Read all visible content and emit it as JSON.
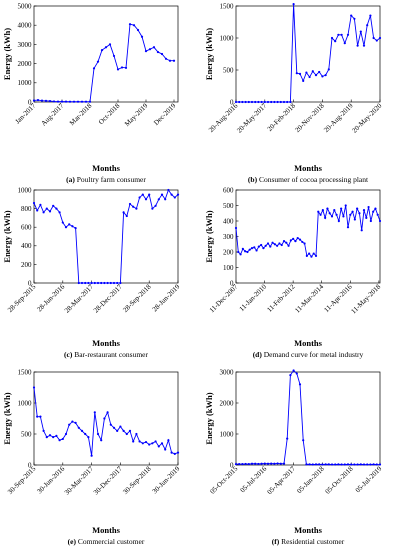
{
  "chart_data": [
    {
      "type": "line",
      "caption_letter": "(a)",
      "caption_text": "Poultry farm consumer",
      "xlabel": "Months",
      "ylabel": "Energy (kWh)",
      "ylim": [
        0,
        5000
      ],
      "yticks": [
        0,
        1000,
        2000,
        3000,
        4000,
        5000
      ],
      "xlim": [
        0,
        36
      ],
      "xticks": [
        {
          "x": 0,
          "label": "Jan-2017"
        },
        {
          "x": 7,
          "label": "Aug-2017"
        },
        {
          "x": 14,
          "label": "Mar-2018"
        },
        {
          "x": 21,
          "label": "Oct-2018"
        },
        {
          "x": 28,
          "label": "May-2019"
        },
        {
          "x": 35,
          "label": "Dec-2019"
        }
      ],
      "color": "#0000ff",
      "series": [
        {
          "x": [
            0,
            1,
            2,
            3,
            4,
            5,
            6,
            7,
            8,
            9,
            10,
            11,
            12,
            13,
            14,
            15,
            16,
            17,
            18,
            19,
            20,
            21,
            22,
            23,
            24,
            25,
            26,
            27,
            28,
            29,
            30,
            31,
            32,
            33,
            34,
            35
          ],
          "y": [
            80,
            100,
            70,
            60,
            50,
            30,
            20,
            20,
            20,
            15,
            15,
            15,
            15,
            15,
            15,
            1750,
            2100,
            2700,
            2850,
            3000,
            2400,
            1700,
            1800,
            1780,
            4050,
            4000,
            3750,
            3400,
            2650,
            2750,
            2850,
            2600,
            2500,
            2250,
            2150,
            2150
          ]
        }
      ]
    },
    {
      "type": "line",
      "caption_letter": "(b)",
      "caption_text": "Consumer of cocoa processing plant",
      "xlabel": "Months",
      "ylabel": "Energy (kWh)",
      "ylim": [
        0,
        1500
      ],
      "yticks": [
        0,
        500,
        1000,
        1500
      ],
      "xlim": [
        0,
        45
      ],
      "xticks": [
        {
          "x": 0,
          "label": "20-Aug-2016"
        },
        {
          "x": 9,
          "label": "20-May-2017"
        },
        {
          "x": 18,
          "label": "20-Feb-2018"
        },
        {
          "x": 27,
          "label": "20-Nov-2018"
        },
        {
          "x": 36,
          "label": "20-Aug-2019"
        },
        {
          "x": 45,
          "label": "20-May-2020"
        }
      ],
      "color": "#0000ff",
      "series": [
        {
          "x": [
            0,
            1,
            2,
            3,
            4,
            5,
            6,
            7,
            8,
            9,
            10,
            11,
            12,
            13,
            14,
            15,
            16,
            17,
            18,
            19,
            20,
            21,
            22,
            23,
            24,
            25,
            26,
            27,
            28,
            29,
            30,
            31,
            32,
            33,
            34,
            35,
            36,
            37,
            38,
            39,
            40,
            41,
            42,
            43,
            44,
            45
          ],
          "y": [
            0,
            0,
            0,
            0,
            0,
            0,
            0,
            0,
            0,
            0,
            0,
            0,
            0,
            0,
            0,
            0,
            0,
            0,
            1530,
            450,
            440,
            330,
            460,
            390,
            480,
            420,
            470,
            400,
            420,
            510,
            1000,
            950,
            1050,
            1050,
            920,
            1050,
            1350,
            1300,
            880,
            1100,
            880,
            1200,
            1350,
            1000,
            960,
            1000
          ]
        }
      ]
    },
    {
      "type": "line",
      "caption_letter": "(c)",
      "caption_text": "Bar-restaurant consumer",
      "xlabel": "Months",
      "ylabel": "Energy (kWh)",
      "ylim": [
        0,
        1000
      ],
      "yticks": [
        0,
        200,
        400,
        600,
        800,
        1000
      ],
      "xlim": [
        0,
        45
      ],
      "xticks": [
        {
          "x": 0,
          "label": "28-Sep-2015"
        },
        {
          "x": 9,
          "label": "28-Jun-2016"
        },
        {
          "x": 18,
          "label": "28-Mar-2017"
        },
        {
          "x": 27,
          "label": "28-Dec-2017"
        },
        {
          "x": 36,
          "label": "28-Sep-2018"
        },
        {
          "x": 45,
          "label": "28-Jun-2019"
        }
      ],
      "color": "#0000ff",
      "series": [
        {
          "x": [
            0,
            1,
            2,
            3,
            4,
            5,
            6,
            7,
            8,
            9,
            10,
            11,
            12,
            13,
            14,
            15,
            16,
            17,
            18,
            19,
            20,
            21,
            22,
            23,
            24,
            25,
            26,
            27,
            28,
            29,
            30,
            31,
            32,
            33,
            34,
            35,
            36,
            37,
            38,
            39,
            40,
            41,
            42,
            43,
            44,
            45
          ],
          "y": [
            860,
            780,
            840,
            760,
            800,
            770,
            830,
            800,
            760,
            650,
            600,
            630,
            610,
            590,
            0,
            0,
            0,
            0,
            0,
            0,
            0,
            0,
            0,
            0,
            0,
            0,
            0,
            0,
            760,
            720,
            850,
            820,
            800,
            920,
            950,
            900,
            950,
            800,
            830,
            900,
            950,
            900,
            1000,
            950,
            920,
            950
          ]
        }
      ]
    },
    {
      "type": "line",
      "caption_letter": "(d)",
      "caption_text": "Demand curve for metal industry",
      "xlabel": "Months",
      "ylabel": "Energy (kWh)",
      "ylim": [
        0,
        600
      ],
      "yticks": [
        0,
        100,
        200,
        300,
        400,
        500,
        600
      ],
      "xlim": [
        0,
        126
      ],
      "xticks": [
        {
          "x": 0,
          "label": "11-Dec-2007"
        },
        {
          "x": 25,
          "label": "11-Jan-2010"
        },
        {
          "x": 50,
          "label": "11-Feb-2012"
        },
        {
          "x": 75,
          "label": "11-Mar-2014"
        },
        {
          "x": 100,
          "label": "11-Apr-2016"
        },
        {
          "x": 125,
          "label": "11-May-2018"
        }
      ],
      "color": "#0000ff",
      "series": [
        {
          "x": [
            0,
            2,
            4,
            6,
            8,
            10,
            12,
            14,
            16,
            18,
            20,
            22,
            24,
            26,
            28,
            30,
            32,
            34,
            36,
            38,
            40,
            42,
            44,
            46,
            48,
            50,
            52,
            54,
            56,
            58,
            60,
            62,
            64,
            66,
            68,
            70,
            72,
            74,
            76,
            78,
            80,
            82,
            84,
            86,
            88,
            90,
            92,
            94,
            96,
            98,
            100,
            102,
            104,
            106,
            108,
            110,
            112,
            114,
            116,
            118,
            120,
            122,
            124,
            126
          ],
          "y": [
            355,
            200,
            185,
            220,
            205,
            200,
            215,
            225,
            230,
            210,
            235,
            245,
            225,
            240,
            255,
            235,
            260,
            250,
            240,
            255,
            245,
            270,
            260,
            240,
            275,
            285,
            270,
            290,
            280,
            265,
            255,
            175,
            190,
            170,
            190,
            175,
            460,
            440,
            470,
            420,
            480,
            450,
            430,
            470,
            440,
            400,
            480,
            430,
            500,
            360,
            440,
            460,
            410,
            480,
            450,
            340,
            470,
            420,
            490,
            400,
            460,
            480,
            440,
            400
          ]
        }
      ]
    },
    {
      "type": "line",
      "caption_letter": "(e)",
      "caption_text": "Commercial customer",
      "xlabel": "Months",
      "ylabel": "Energy (kWh)",
      "ylim": [
        0,
        1500
      ],
      "yticks": [
        0,
        500,
        1000,
        1500
      ],
      "xlim": [
        0,
        45
      ],
      "xticks": [
        {
          "x": 0,
          "label": "30-Sep-2015"
        },
        {
          "x": 9,
          "label": "30-Jun-2016"
        },
        {
          "x": 18,
          "label": "30-Mar-2017"
        },
        {
          "x": 27,
          "label": "30-Dec-2017"
        },
        {
          "x": 36,
          "label": "30-Sep-2018"
        },
        {
          "x": 45,
          "label": "30-Jun-2019"
        }
      ],
      "color": "#0000ff",
      "series": [
        {
          "x": [
            0,
            1,
            2,
            3,
            4,
            5,
            6,
            7,
            8,
            9,
            10,
            11,
            12,
            13,
            14,
            15,
            16,
            17,
            18,
            19,
            20,
            21,
            22,
            23,
            24,
            25,
            26,
            27,
            28,
            29,
            30,
            31,
            32,
            33,
            34,
            35,
            36,
            37,
            38,
            39,
            40,
            41,
            42,
            43,
            44,
            45
          ],
          "y": [
            1250,
            780,
            780,
            550,
            450,
            480,
            450,
            470,
            400,
            420,
            500,
            650,
            700,
            680,
            600,
            550,
            500,
            450,
            150,
            850,
            500,
            400,
            750,
            850,
            650,
            600,
            550,
            620,
            550,
            500,
            550,
            380,
            500,
            380,
            350,
            370,
            330,
            350,
            380,
            300,
            350,
            250,
            400,
            200,
            180,
            200
          ]
        }
      ]
    },
    {
      "type": "line",
      "caption_letter": "(f)",
      "caption_text": "Residential customer",
      "xlabel": "Months",
      "ylabel": "Energy (kWh)",
      "ylim": [
        0,
        3000
      ],
      "yticks": [
        0,
        1000,
        2000,
        3000
      ],
      "xlim": [
        0,
        45
      ],
      "xticks": [
        {
          "x": 0,
          "label": "05-Oct-2015"
        },
        {
          "x": 9,
          "label": "05-Jul-2016"
        },
        {
          "x": 18,
          "label": "05-Apr-2017"
        },
        {
          "x": 27,
          "label": "05-Jan-2018"
        },
        {
          "x": 36,
          "label": "05-Oct-2018"
        },
        {
          "x": 45,
          "label": "05-Jul-2019"
        }
      ],
      "color": "#0000ff",
      "series": [
        {
          "x": [
            0,
            1,
            2,
            3,
            4,
            5,
            6,
            7,
            8,
            9,
            10,
            11,
            12,
            13,
            14,
            15,
            16,
            17,
            18,
            19,
            20,
            21,
            22,
            23,
            24,
            25,
            26,
            27,
            28,
            29,
            30,
            31,
            32,
            33,
            34,
            35,
            36,
            37,
            38,
            39,
            40,
            41,
            42,
            43,
            44,
            45
          ],
          "y": [
            30,
            30,
            30,
            35,
            30,
            40,
            40,
            35,
            40,
            45,
            40,
            45,
            40,
            50,
            40,
            45,
            850,
            2900,
            3050,
            2950,
            2600,
            800,
            20,
            20,
            15,
            20,
            20,
            15,
            20,
            20,
            15,
            15,
            20,
            15,
            15,
            20,
            15,
            15,
            15,
            20,
            15,
            15,
            15,
            20,
            15,
            15
          ]
        }
      ]
    }
  ]
}
